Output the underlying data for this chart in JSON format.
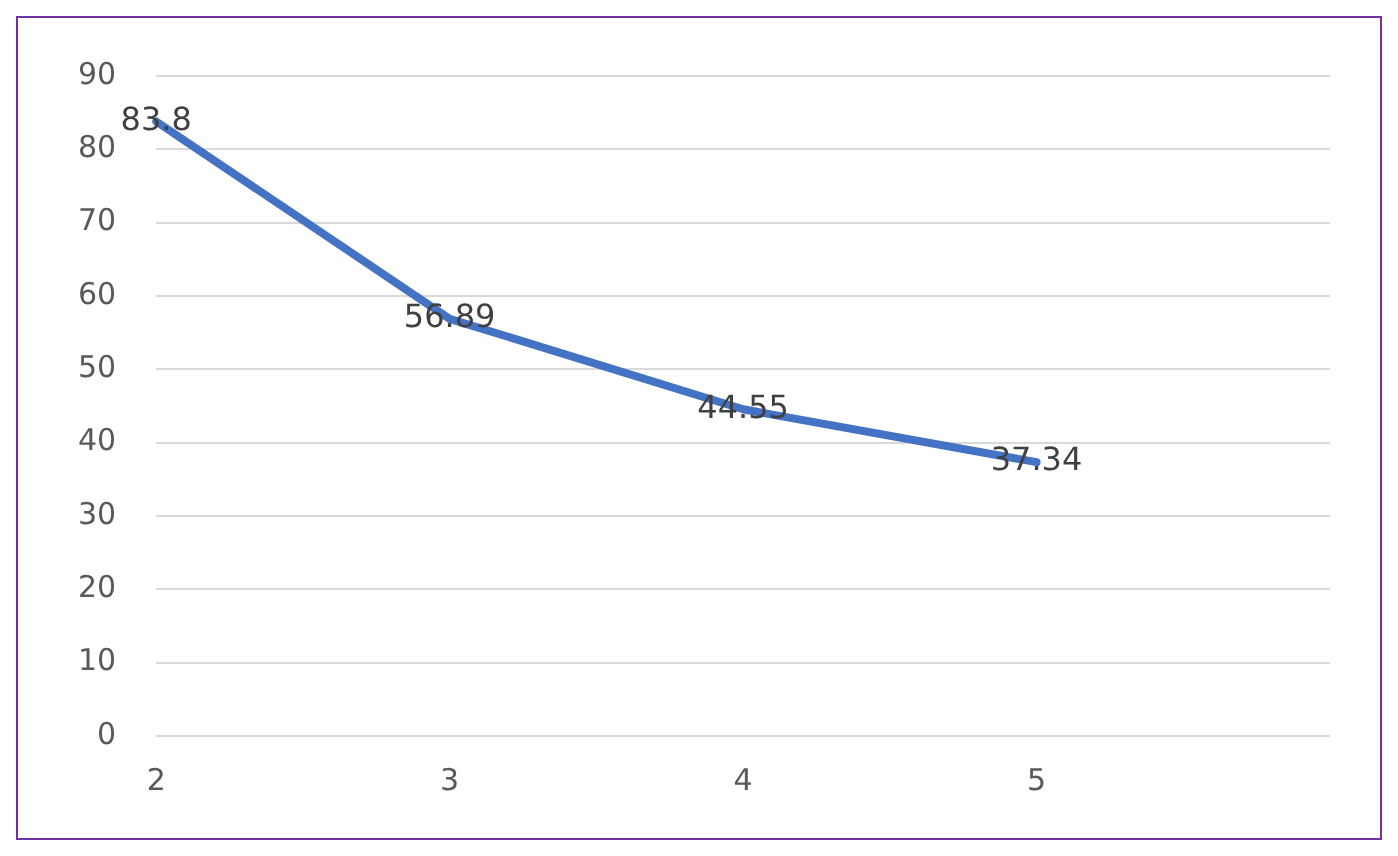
{
  "chart_data": {
    "type": "line",
    "categories": [
      "2",
      "3",
      "4",
      "5",
      null
    ],
    "series": [
      {
        "color": "#4472c4",
        "values": [
          83.8,
          56.89,
          44.55,
          37.34,
          null
        ]
      }
    ],
    "ylim": [
      0,
      90
    ],
    "yticks": [
      0,
      10,
      20,
      30,
      40,
      50,
      60,
      70,
      80,
      90
    ],
    "grid": "y",
    "data_labels": true,
    "marker": "none",
    "line_style": "solid",
    "legend": false
  }
}
